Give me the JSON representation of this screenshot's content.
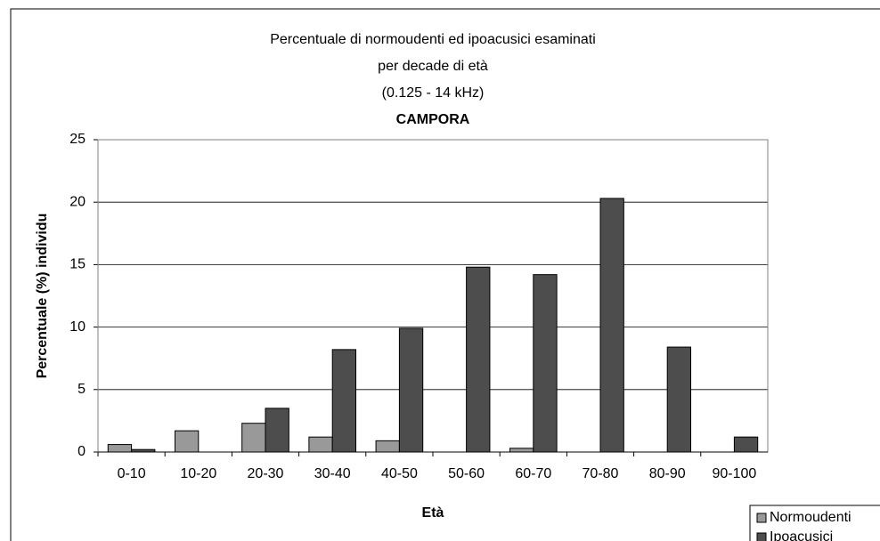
{
  "chart_data": {
    "type": "bar",
    "title": [
      "Percentuale di normoudenti ed ipoacusici esaminati",
      "per decade di età",
      "(0.125 - 14 kHz)"
    ],
    "subtitle": "CAMPORA",
    "x_label": "Età",
    "y_label": "Percentuale (%) individu",
    "categories": [
      "0-10",
      "10-20",
      "20-30",
      "30-40",
      "40-50",
      "50-60",
      "60-70",
      "70-80",
      "80-90",
      "90-100"
    ],
    "series": [
      {
        "name": "Normoudenti",
        "color": "#999999",
        "values": [
          0.6,
          1.7,
          2.3,
          1.2,
          0.9,
          0,
          0.3,
          0,
          0,
          0
        ]
      },
      {
        "name": "Ipoacusici",
        "color": "#4d4d4d",
        "values": [
          0.2,
          0,
          3.5,
          8.2,
          9.9,
          14.8,
          14.2,
          20.3,
          8.4,
          1.2
        ]
      }
    ],
    "ylim": [
      0,
      25
    ],
    "yticks": [
      0,
      5,
      10,
      15,
      20,
      25
    ],
    "grid": true,
    "legend": "bottom-right"
  }
}
